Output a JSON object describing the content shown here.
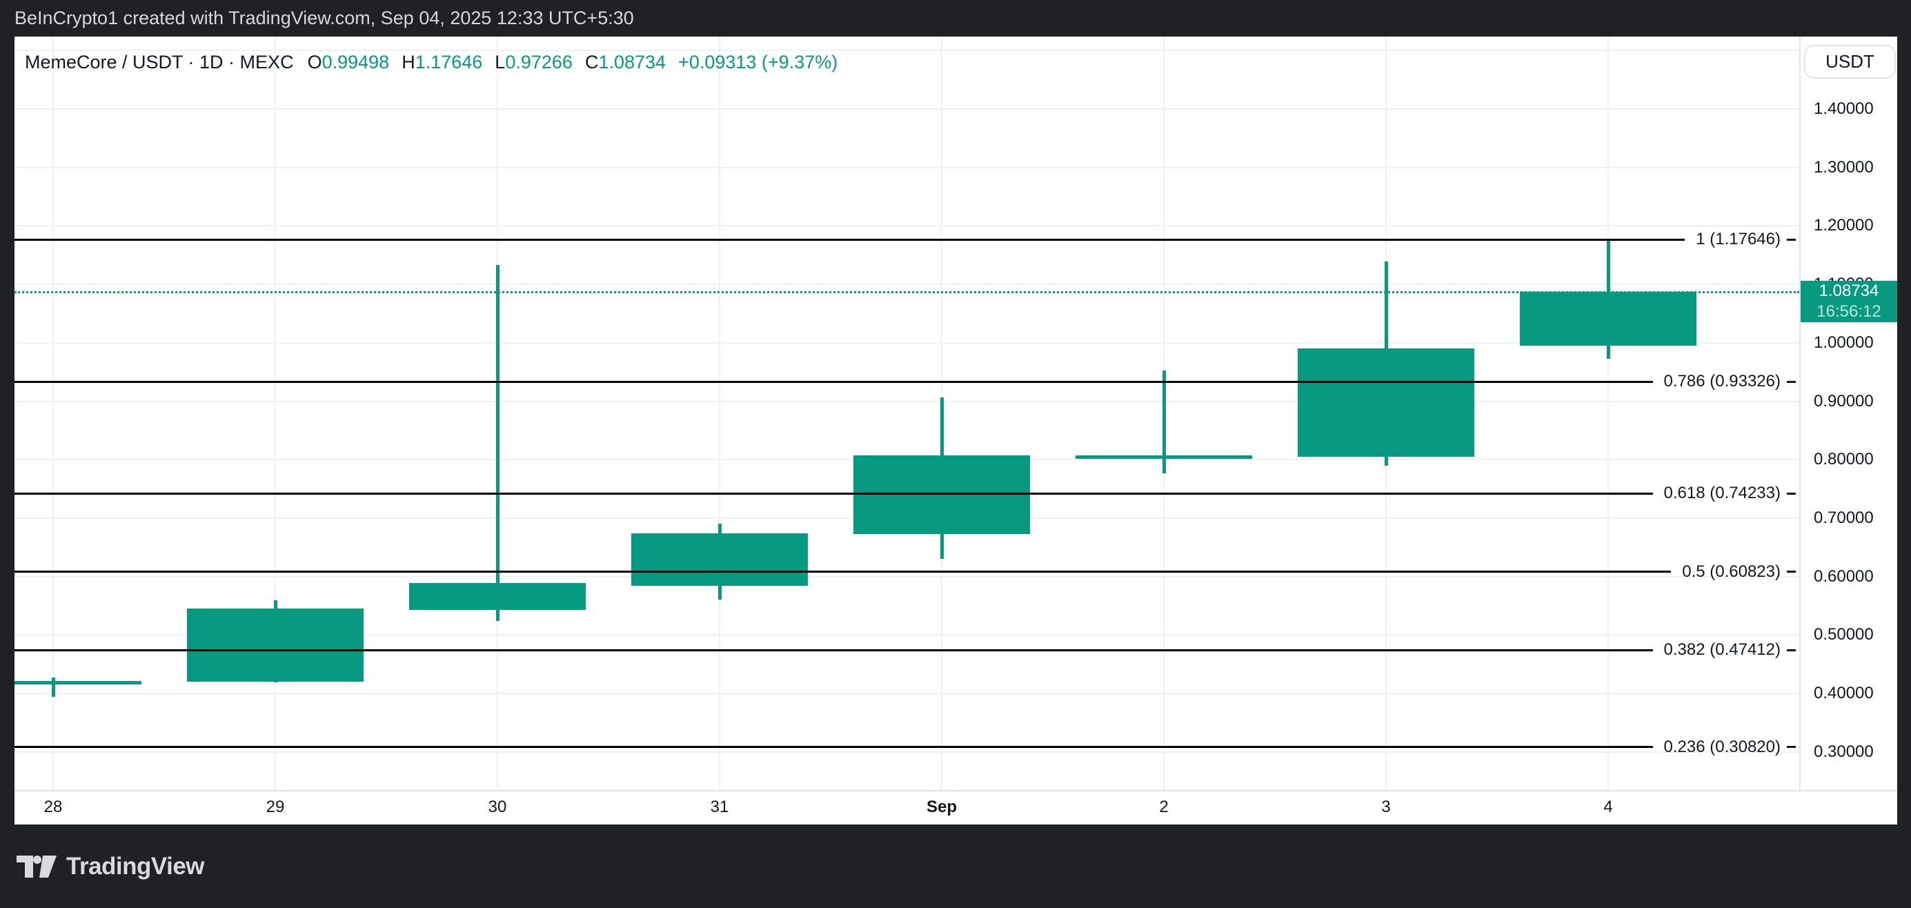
{
  "header": {
    "watermark": "BeInCrypto1 created with TradingView.com, Sep 04, 2025 12:33 UTC+5:30"
  },
  "legend": {
    "title": "MemeCore / USDT · 1D · MEXC",
    "ohlc": [
      {
        "k": "O",
        "v": "0.99498"
      },
      {
        "k": "H",
        "v": "1.17646"
      },
      {
        "k": "L",
        "v": "0.97266"
      },
      {
        "k": "C",
        "v": "1.08734"
      }
    ],
    "change": "+0.09313 (+9.37%)"
  },
  "price_axis": {
    "currency_button": "USDT",
    "labels": [
      "1.40000",
      "1.30000",
      "1.20000",
      "1.10000",
      "1.00000",
      "0.90000",
      "0.80000",
      "0.70000",
      "0.60000",
      "0.50000",
      "0.40000",
      "0.30000"
    ],
    "last": {
      "value": "1.08734",
      "countdown": "16:56:12"
    }
  },
  "footer": {
    "logo_text": "TradingView"
  },
  "colors": {
    "up_candle": "#089981",
    "last_price_line": "#089981",
    "badge_bg": "#089981",
    "fib_line": "#000000",
    "dark_background": "#202124",
    "grid": "#eff1f4",
    "axis_border": "#e0e3eb",
    "text_dark": "#131722",
    "text_light": "#d6d8da"
  },
  "chart_data": {
    "type": "candlestick",
    "title": "MemeCore / USDT · 1D · MEXC",
    "symbol": "MemeCore / USDT",
    "interval": "1D",
    "exchange": "MEXC",
    "candles": [
      {
        "date": "Aug 28",
        "o": 0.421,
        "h": 0.427,
        "l": 0.394,
        "c": 0.42
      },
      {
        "date": "Aug 29",
        "o": 0.42,
        "h": 0.559,
        "l": 0.419,
        "c": 0.545
      },
      {
        "date": "Aug 30",
        "o": 0.543,
        "h": 1.133,
        "l": 0.524,
        "c": 0.589
      },
      {
        "date": "Aug 31",
        "o": 0.584,
        "h": 0.69,
        "l": 0.561,
        "c": 0.674
      },
      {
        "date": "Sep 1",
        "o": 0.673,
        "h": 0.906,
        "l": 0.63,
        "c": 0.807
      },
      {
        "date": "Sep 2",
        "o": 0.805,
        "h": 0.952,
        "l": 0.777,
        "c": 0.807
      },
      {
        "date": "Sep 3",
        "o": 0.805,
        "h": 1.139,
        "l": 0.79,
        "c": 0.99
      },
      {
        "date": "Sep 4",
        "o": 0.99498,
        "h": 1.17646,
        "l": 0.97266,
        "c": 1.08734
      }
    ],
    "last_price": 1.08734,
    "up_color": "#089981",
    "y_axis": {
      "min": 0.2347,
      "max": 1.524,
      "grid_step": 0.1
    },
    "x_axis": {
      "ticks": [
        {
          "label": "28",
          "bold": false
        },
        {
          "label": "29",
          "bold": false
        },
        {
          "label": "30",
          "bold": false
        },
        {
          "label": "31",
          "bold": false
        },
        {
          "label": "Sep",
          "bold": true
        },
        {
          "label": "2",
          "bold": false
        },
        {
          "label": "3",
          "bold": false
        },
        {
          "label": "4",
          "bold": false
        }
      ]
    },
    "fib_levels": [
      {
        "label": "1 (1.17646)",
        "level": 1,
        "price": 1.17646
      },
      {
        "label": "0.786 (0.93326)",
        "level": 0.786,
        "price": 0.93326
      },
      {
        "label": "0.618 (0.74233)",
        "level": 0.618,
        "price": 0.74233
      },
      {
        "label": "0.5 (0.60823)",
        "level": 0.5,
        "price": 0.60823
      },
      {
        "label": "0.382 (0.47412)",
        "level": 0.382,
        "price": 0.47412
      },
      {
        "label": "0.236 (0.30820)",
        "level": 0.236,
        "price": 0.3082
      }
    ],
    "legend_position": "top-left",
    "grid": true
  }
}
